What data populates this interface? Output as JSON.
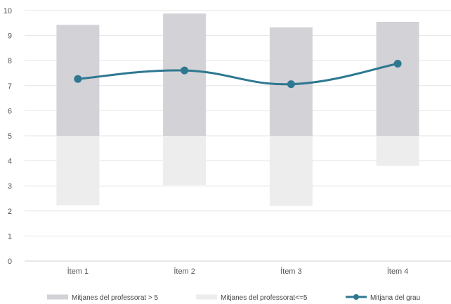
{
  "chart_data": {
    "type": "bar",
    "categories": [
      "Ítem 1",
      "Ítem 2",
      "Ítem 3",
      "Ítem 4"
    ],
    "ylim": [
      0,
      10
    ],
    "yticks": [
      0,
      1,
      2,
      3,
      4,
      5,
      6,
      7,
      8,
      9,
      10
    ],
    "grid": true,
    "legend_position": "bottom",
    "series": [
      {
        "name": "Mitjanes del professorat > 5",
        "kind": "floating-bar",
        "color": "#d3d2d6",
        "ranges": [
          [
            5,
            9.43
          ],
          [
            5,
            9.88
          ],
          [
            5,
            9.33
          ],
          [
            5,
            9.55
          ]
        ]
      },
      {
        "name": "Mitjanes del professorat<=5",
        "kind": "floating-bar",
        "color": "#ededee",
        "ranges": [
          [
            2.23,
            5
          ],
          [
            3.03,
            5
          ],
          [
            2.2,
            5
          ],
          [
            3.8,
            5
          ]
        ]
      },
      {
        "name": "Mitjana del grau",
        "kind": "line",
        "color": "#2e7891",
        "values": [
          7.27,
          7.61,
          7.06,
          7.88
        ]
      }
    ]
  }
}
